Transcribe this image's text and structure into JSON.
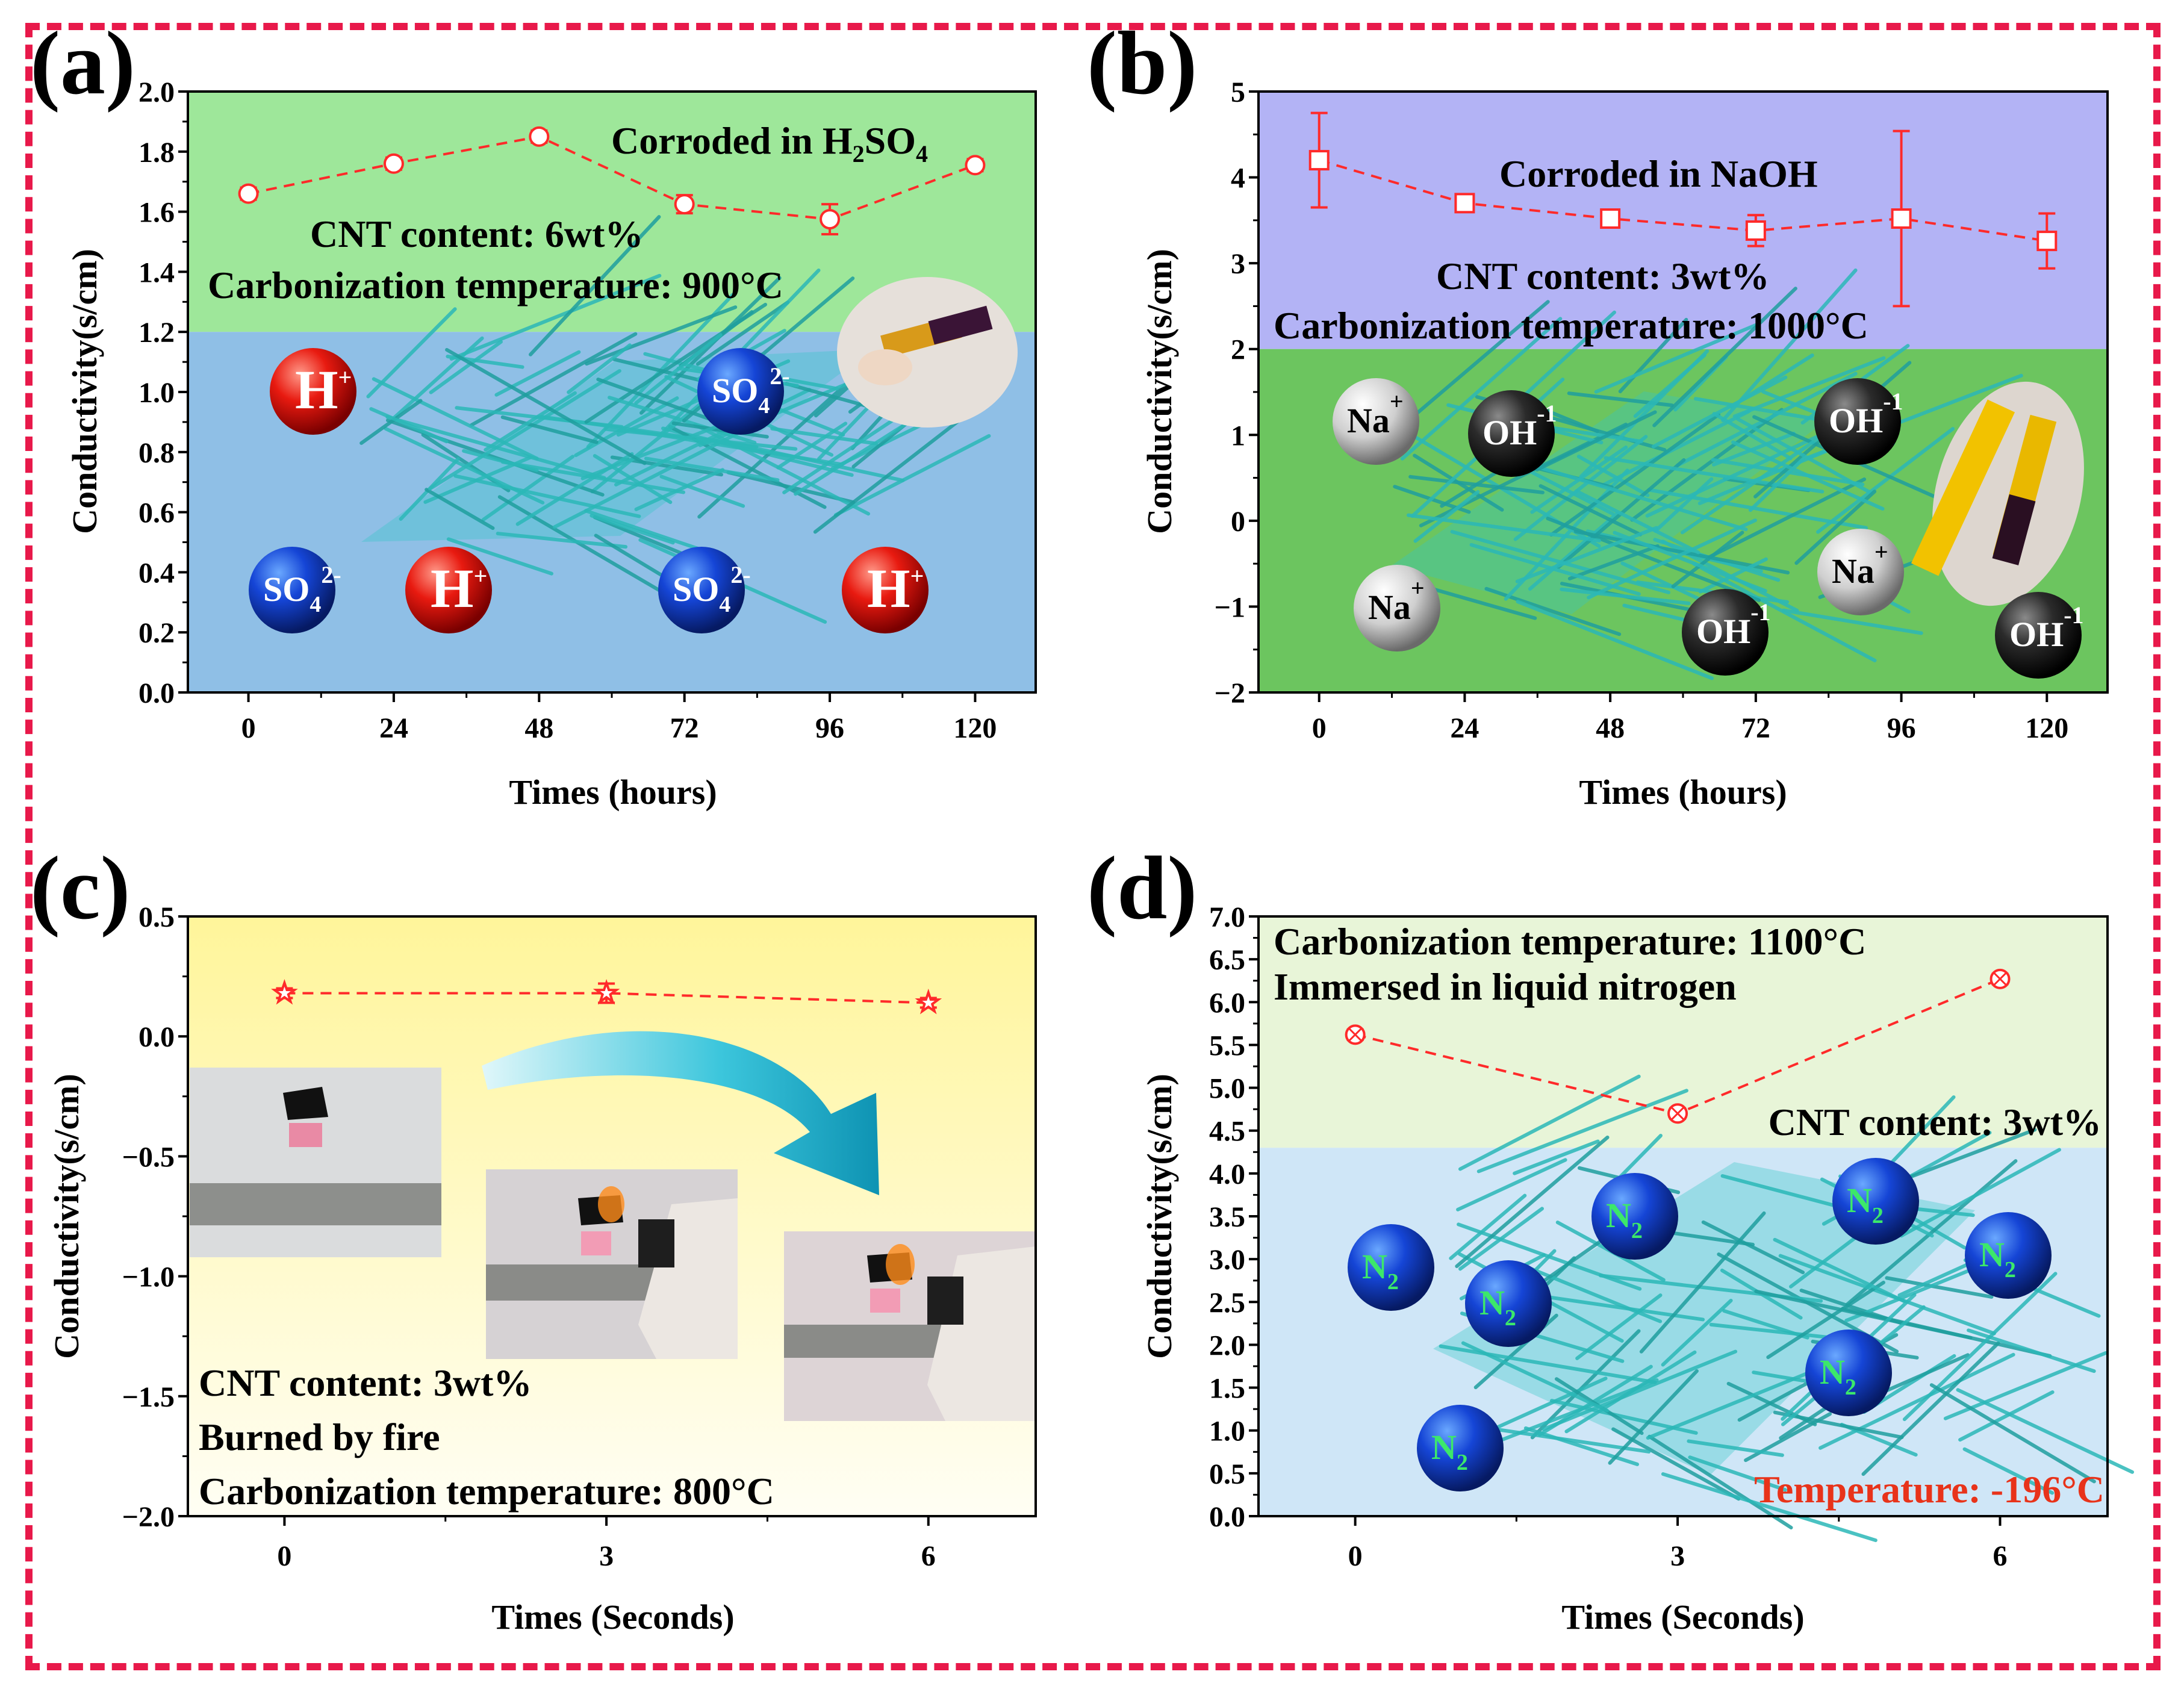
{
  "figure": {
    "frame_color": "#e8194a",
    "series_color": "#ff2a2a"
  },
  "chart_data": [
    {
      "panel": "(a)",
      "type": "line",
      "xlabel": "Times (hours)",
      "ylabel": "Conductivity(s/cm)",
      "x": [
        0,
        24,
        48,
        72,
        96,
        120
      ],
      "x_ticks": [
        "0",
        "24",
        "48",
        "72",
        "96",
        "120"
      ],
      "xlim": [
        -10,
        130
      ],
      "values": [
        1.66,
        1.76,
        1.85,
        1.625,
        1.575,
        1.755
      ],
      "errors": [
        0.02,
        0.02,
        0.02,
        0.03,
        0.05,
        0.02
      ],
      "ylim": [
        0.0,
        2.0
      ],
      "y_ticks": [
        "0.0",
        "0.2",
        "0.4",
        "0.6",
        "0.8",
        "1.0",
        "1.2",
        "1.4",
        "1.6",
        "1.8",
        "2.0"
      ],
      "marker": "circle",
      "bg_split": 1.2,
      "bg_top": "#9ee79a",
      "bg_bottom": "#8fbfe6",
      "annotations": {
        "title_main": "Corroded in H",
        "title_sub1": "2",
        "title_mid": "SO",
        "title_sub2": "4",
        "cnt": "CNT content: 6wt%",
        "carbonization": "Carbonization temperature: 900°C"
      },
      "ions": [
        {
          "label": "H",
          "sup": "+",
          "color": "red"
        },
        {
          "label": "SO",
          "sub": "4",
          "sup": "2-",
          "color": "blue"
        },
        {
          "label": "SO",
          "sub": "4",
          "sup": "2-",
          "color": "blue"
        },
        {
          "label": "H",
          "sup": "+",
          "color": "red"
        },
        {
          "label": "SO",
          "sub": "4",
          "sup": "2-",
          "color": "blue"
        },
        {
          "label": "H",
          "sup": "+",
          "color": "red"
        }
      ]
    },
    {
      "panel": "(b)",
      "type": "line",
      "xlabel": "Times (hours)",
      "ylabel": "Conductivity(s/cm)",
      "x": [
        0,
        24,
        48,
        72,
        96,
        120
      ],
      "x_ticks": [
        "0",
        "24",
        "48",
        "72",
        "96",
        "120"
      ],
      "xlim": [
        -10,
        130
      ],
      "values": [
        4.2,
        3.7,
        3.52,
        3.38,
        3.52,
        3.26
      ],
      "errors": [
        0.55,
        0.08,
        0.1,
        0.18,
        1.02,
        0.32
      ],
      "ylim": [
        -2,
        5
      ],
      "y_ticks": [
        "−2",
        "−1",
        "0",
        "1",
        "2",
        "3",
        "4",
        "5"
      ],
      "marker": "square",
      "bg_split": 2.0,
      "bg_top": "#b3b3f5",
      "bg_bottom": "#6cc55f",
      "annotations": {
        "title": "Corroded in NaOH",
        "cnt": "CNT content: 3wt%",
        "carbonization": "Carbonization temperature: 1000°C"
      },
      "ions": [
        {
          "label": "Na",
          "sup": "+",
          "color": "white"
        },
        {
          "label": "OH",
          "sup": "-1",
          "color": "black"
        },
        {
          "label": "OH",
          "sup": "-1",
          "color": "black"
        },
        {
          "label": "Na",
          "sup": "+",
          "color": "white"
        },
        {
          "label": "Na",
          "sup": "+",
          "color": "white"
        },
        {
          "label": "OH",
          "sup": "-1",
          "color": "black"
        },
        {
          "label": "OH",
          "sup": "-1",
          "color": "black"
        }
      ]
    },
    {
      "panel": "(c)",
      "type": "line",
      "xlabel": "Times (Seconds)",
      "ylabel": "Conductivity(s/cm)",
      "x": [
        0,
        3,
        6
      ],
      "x_ticks": [
        "0",
        "3",
        "6"
      ],
      "xlim": [
        -0.9,
        7.0
      ],
      "values": [
        0.18,
        0.18,
        0.14
      ],
      "errors": [
        0.02,
        0.04,
        0.02
      ],
      "ylim": [
        -2.0,
        0.5
      ],
      "y_ticks": [
        "−2.0",
        "−1.5",
        "−1.0",
        "−0.5",
        "0.0",
        "0.5"
      ],
      "marker": "star",
      "bg_top": "#fff8a8",
      "bg_bottom": "#ffffff",
      "annotations": {
        "cnt": "CNT content: 3wt%",
        "burned": "Burned by fire",
        "carbonization": "Carbonization temperature: 800°C"
      }
    },
    {
      "panel": "(d)",
      "type": "line",
      "xlabel": "Times (Seconds)",
      "ylabel": "Conductivity(s/cm)",
      "x": [
        0,
        3,
        6
      ],
      "x_ticks": [
        "0",
        "3",
        "6"
      ],
      "xlim": [
        -0.9,
        7.0
      ],
      "values": [
        5.62,
        4.7,
        6.27
      ],
      "errors": [
        0.06,
        0.06,
        0.06
      ],
      "ylim": [
        0.0,
        7.0
      ],
      "y_ticks": [
        "0.0",
        "0.5",
        "1.0",
        "1.5",
        "2.0",
        "2.5",
        "3.0",
        "3.5",
        "4.0",
        "4.5",
        "5.0",
        "5.5",
        "6.0",
        "6.5",
        "7.0"
      ],
      "marker": "crossed-circle",
      "bg_split": 4.3,
      "bg_top": "#e8f5d8",
      "bg_bottom": "#cfe6f7",
      "annotations": {
        "carbonization": "Carbonization temperature: 1100°C",
        "immersed": "Immersed in liquid nitrogen",
        "cnt": "CNT content: 3wt%",
        "temperature": "Temperature: -196°C"
      },
      "ions": [
        {
          "label": "N",
          "sub": "2",
          "color": "blue"
        },
        {
          "label": "N",
          "sub": "2",
          "color": "blue"
        },
        {
          "label": "N",
          "sub": "2",
          "color": "blue"
        },
        {
          "label": "N",
          "sub": "2",
          "color": "blue"
        },
        {
          "label": "N",
          "sub": "2",
          "color": "blue"
        },
        {
          "label": "N",
          "sub": "2",
          "color": "blue"
        },
        {
          "label": "N",
          "sub": "2",
          "color": "blue"
        }
      ]
    }
  ]
}
